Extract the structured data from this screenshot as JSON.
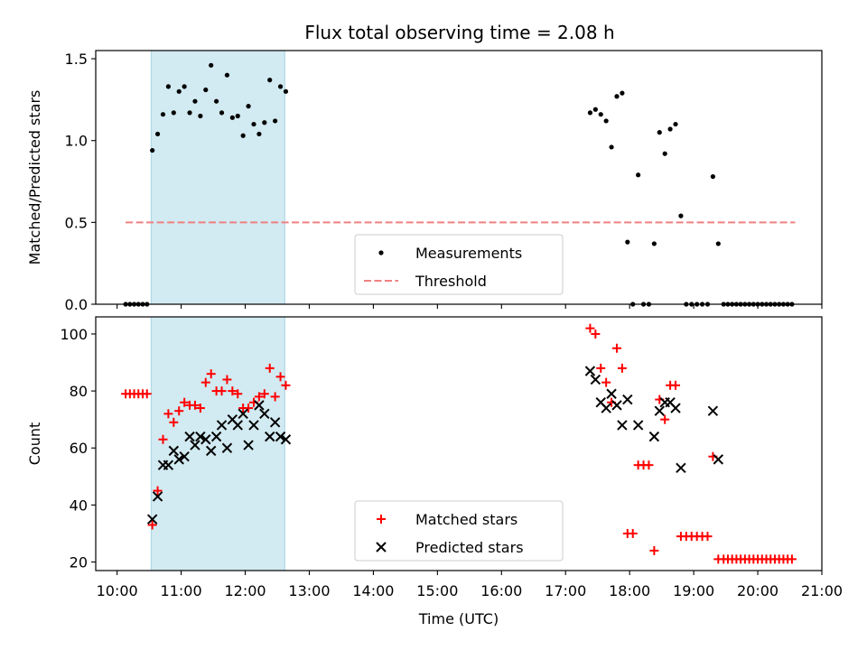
{
  "title": "Flux total observing time = 2.08 h",
  "colors": {
    "measurement": "#000000",
    "threshold": "#f08080",
    "matched": "#ff0000",
    "predicted": "#000000",
    "shade": "#add8e6"
  },
  "chart_data": [
    {
      "type": "scatter",
      "ylabel": "Matched/Predicted stars",
      "ylim": [
        0,
        1.55
      ],
      "yticks": [
        0.0,
        0.5,
        1.0,
        1.5
      ],
      "ytick_labels": [
        "0.0",
        "0.5",
        "1.0",
        "1.5"
      ],
      "shaded_span": [
        "10:32",
        "12:37"
      ],
      "legend": {
        "placement": "lower center",
        "entries": [
          "Measurements",
          "Threshold"
        ]
      },
      "threshold": {
        "name": "Threshold",
        "value": 0.5,
        "x": [
          "10:08",
          "20:35"
        ]
      },
      "series": [
        {
          "name": "Measurements",
          "marker": "dot",
          "points": [
            [
              "10:08",
              0
            ],
            [
              "10:12",
              0
            ],
            [
              "10:16",
              0
            ],
            [
              "10:20",
              0
            ],
            [
              "10:24",
              0
            ],
            [
              "10:28",
              0
            ],
            [
              "10:33",
              0.94
            ],
            [
              "10:38",
              1.04
            ],
            [
              "10:43",
              1.16
            ],
            [
              "10:48",
              1.33
            ],
            [
              "10:53",
              1.17
            ],
            [
              "10:58",
              1.3
            ],
            [
              "11:03",
              1.33
            ],
            [
              "11:08",
              1.17
            ],
            [
              "11:13",
              1.24
            ],
            [
              "11:18",
              1.15
            ],
            [
              "11:23",
              1.31
            ],
            [
              "11:28",
              1.46
            ],
            [
              "11:33",
              1.24
            ],
            [
              "11:38",
              1.17
            ],
            [
              "11:43",
              1.4
            ],
            [
              "11:48",
              1.14
            ],
            [
              "11:53",
              1.15
            ],
            [
              "11:58",
              1.03
            ],
            [
              "12:03",
              1.21
            ],
            [
              "12:08",
              1.1
            ],
            [
              "12:13",
              1.04
            ],
            [
              "12:18",
              1.11
            ],
            [
              "12:23",
              1.37
            ],
            [
              "12:28",
              1.12
            ],
            [
              "12:33",
              1.33
            ],
            [
              "12:38",
              1.3
            ],
            [
              "17:23",
              1.17
            ],
            [
              "17:28",
              1.19
            ],
            [
              "17:33",
              1.16
            ],
            [
              "17:38",
              1.12
            ],
            [
              "17:43",
              0.96
            ],
            [
              "17:48",
              1.27
            ],
            [
              "17:53",
              1.29
            ],
            [
              "17:58",
              0.38
            ],
            [
              "18:03",
              0
            ],
            [
              "18:08",
              0.79
            ],
            [
              "18:13",
              0
            ],
            [
              "18:18",
              0
            ],
            [
              "18:23",
              0.37
            ],
            [
              "18:28",
              1.05
            ],
            [
              "18:33",
              0.92
            ],
            [
              "18:38",
              1.07
            ],
            [
              "18:43",
              1.1
            ],
            [
              "18:48",
              0.54
            ],
            [
              "18:53",
              0
            ],
            [
              "18:58",
              0
            ],
            [
              "19:03",
              0
            ],
            [
              "19:08",
              0
            ],
            [
              "19:13",
              0
            ],
            [
              "19:18",
              0.78
            ],
            [
              "19:23",
              0.37
            ],
            [
              "19:28",
              0
            ],
            [
              "19:32",
              0
            ],
            [
              "19:36",
              0
            ],
            [
              "19:40",
              0
            ],
            [
              "19:44",
              0
            ],
            [
              "19:48",
              0
            ],
            [
              "19:52",
              0
            ],
            [
              "19:56",
              0
            ],
            [
              "20:00",
              0
            ],
            [
              "20:04",
              0
            ],
            [
              "20:08",
              0
            ],
            [
              "20:12",
              0
            ],
            [
              "20:16",
              0
            ],
            [
              "20:20",
              0
            ],
            [
              "20:24",
              0
            ],
            [
              "20:28",
              0
            ],
            [
              "20:32",
              0
            ]
          ]
        }
      ]
    },
    {
      "type": "scatter",
      "xlabel": "Time (UTC)",
      "ylabel": "Count",
      "ylim": [
        17,
        106
      ],
      "xlim": [
        "09:40",
        "21:00"
      ],
      "yticks": [
        20,
        40,
        60,
        80,
        100
      ],
      "ytick_labels": [
        "20",
        "40",
        "60",
        "80",
        "100"
      ],
      "xticks": [
        "10:00",
        "11:00",
        "12:00",
        "13:00",
        "14:00",
        "15:00",
        "16:00",
        "17:00",
        "18:00",
        "19:00",
        "20:00",
        "21:00"
      ],
      "shaded_span": [
        "10:32",
        "12:37"
      ],
      "legend": {
        "placement": "lower center",
        "entries": [
          "Matched stars",
          "Predicted stars"
        ]
      },
      "series": [
        {
          "name": "Matched stars",
          "marker": "plus",
          "points": [
            [
              "10:08",
              79
            ],
            [
              "10:12",
              79
            ],
            [
              "10:16",
              79
            ],
            [
              "10:20",
              79
            ],
            [
              "10:24",
              79
            ],
            [
              "10:28",
              79
            ],
            [
              "10:33",
              33
            ],
            [
              "10:38",
              45
            ],
            [
              "10:43",
              63
            ],
            [
              "10:48",
              72
            ],
            [
              "10:53",
              69
            ],
            [
              "10:58",
              73
            ],
            [
              "11:03",
              76
            ],
            [
              "11:08",
              75
            ],
            [
              "11:13",
              75
            ],
            [
              "11:18",
              74
            ],
            [
              "11:23",
              83
            ],
            [
              "11:28",
              86
            ],
            [
              "11:33",
              80
            ],
            [
              "11:38",
              80
            ],
            [
              "11:43",
              84
            ],
            [
              "11:48",
              80
            ],
            [
              "11:53",
              79
            ],
            [
              "11:58",
              74
            ],
            [
              "12:03",
              74
            ],
            [
              "12:08",
              76
            ],
            [
              "12:13",
              78
            ],
            [
              "12:18",
              79
            ],
            [
              "12:23",
              88
            ],
            [
              "12:28",
              78
            ],
            [
              "12:33",
              85
            ],
            [
              "12:38",
              82
            ],
            [
              "17:23",
              102
            ],
            [
              "17:28",
              100
            ],
            [
              "17:33",
              88
            ],
            [
              "17:38",
              83
            ],
            [
              "17:43",
              76
            ],
            [
              "17:48",
              95
            ],
            [
              "17:53",
              88
            ],
            [
              "17:58",
              30
            ],
            [
              "18:03",
              30
            ],
            [
              "18:08",
              54
            ],
            [
              "18:13",
              54
            ],
            [
              "18:18",
              54
            ],
            [
              "18:23",
              24
            ],
            [
              "18:28",
              77
            ],
            [
              "18:33",
              70
            ],
            [
              "18:38",
              82
            ],
            [
              "18:43",
              82
            ],
            [
              "18:48",
              29
            ],
            [
              "18:53",
              29
            ],
            [
              "18:58",
              29
            ],
            [
              "19:03",
              29
            ],
            [
              "19:08",
              29
            ],
            [
              "19:13",
              29
            ],
            [
              "19:18",
              57
            ],
            [
              "19:23",
              21
            ],
            [
              "19:28",
              21
            ],
            [
              "19:32",
              21
            ],
            [
              "19:36",
              21
            ],
            [
              "19:40",
              21
            ],
            [
              "19:44",
              21
            ],
            [
              "19:48",
              21
            ],
            [
              "19:52",
              21
            ],
            [
              "19:56",
              21
            ],
            [
              "20:00",
              21
            ],
            [
              "20:04",
              21
            ],
            [
              "20:08",
              21
            ],
            [
              "20:12",
              21
            ],
            [
              "20:16",
              21
            ],
            [
              "20:20",
              21
            ],
            [
              "20:24",
              21
            ],
            [
              "20:28",
              21
            ],
            [
              "20:32",
              21
            ]
          ]
        },
        {
          "name": "Predicted stars",
          "marker": "cross",
          "points": [
            [
              "10:33",
              35
            ],
            [
              "10:38",
              43
            ],
            [
              "10:43",
              54
            ],
            [
              "10:48",
              54
            ],
            [
              "10:53",
              59
            ],
            [
              "10:58",
              56
            ],
            [
              "11:03",
              57
            ],
            [
              "11:08",
              64
            ],
            [
              "11:13",
              61
            ],
            [
              "11:18",
              64
            ],
            [
              "11:23",
              63
            ],
            [
              "11:28",
              59
            ],
            [
              "11:33",
              64
            ],
            [
              "11:38",
              68
            ],
            [
              "11:43",
              60
            ],
            [
              "11:48",
              70
            ],
            [
              "11:53",
              68
            ],
            [
              "11:58",
              72
            ],
            [
              "12:03",
              61
            ],
            [
              "12:08",
              68
            ],
            [
              "12:13",
              75
            ],
            [
              "12:18",
              72
            ],
            [
              "12:23",
              64
            ],
            [
              "12:28",
              69
            ],
            [
              "12:33",
              64
            ],
            [
              "12:38",
              63
            ],
            [
              "17:23",
              87
            ],
            [
              "17:28",
              84
            ],
            [
              "17:33",
              76
            ],
            [
              "17:38",
              74
            ],
            [
              "17:43",
              79
            ],
            [
              "17:48",
              75
            ],
            [
              "17:53",
              68
            ],
            [
              "17:58",
              77
            ],
            [
              "18:08",
              68
            ],
            [
              "18:23",
              64
            ],
            [
              "18:28",
              73
            ],
            [
              "18:33",
              76
            ],
            [
              "18:38",
              76
            ],
            [
              "18:43",
              74
            ],
            [
              "18:48",
              53
            ],
            [
              "19:18",
              73
            ],
            [
              "19:23",
              56
            ]
          ]
        }
      ]
    }
  ]
}
